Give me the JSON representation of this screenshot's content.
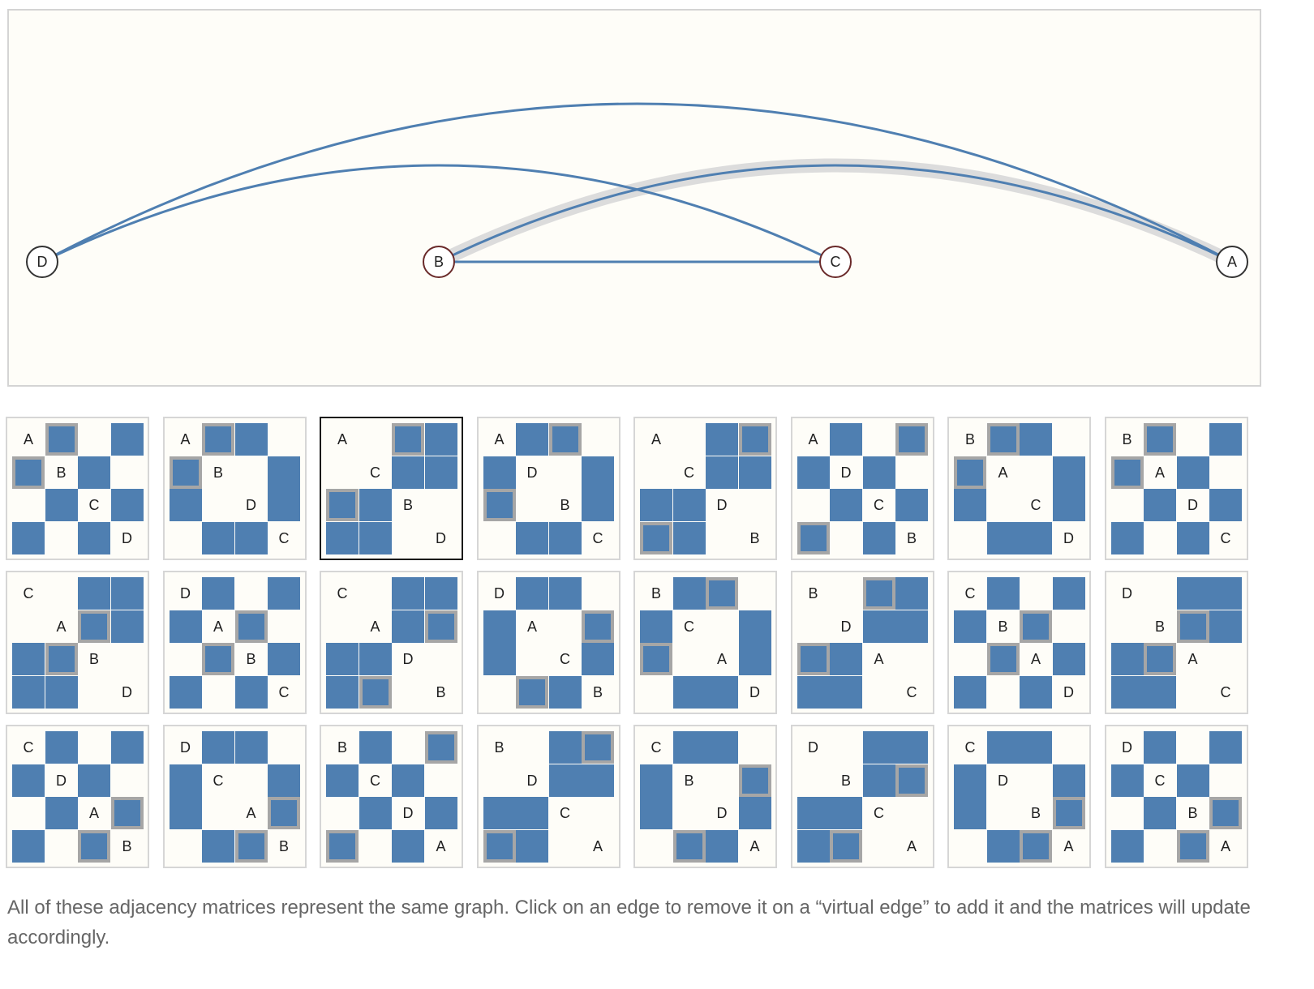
{
  "graph": {
    "nodes": [
      {
        "id": "D",
        "label": "D",
        "stroke": "#333333"
      },
      {
        "id": "B",
        "label": "B",
        "stroke": "#6a2a2a"
      },
      {
        "id": "C",
        "label": "C",
        "stroke": "#6a2a2a"
      },
      {
        "id": "A",
        "label": "A",
        "stroke": "#333333"
      }
    ],
    "edges": [
      {
        "from": "D",
        "to": "A"
      },
      {
        "from": "D",
        "to": "C"
      },
      {
        "from": "B",
        "to": "C"
      },
      {
        "from": "B",
        "to": "A"
      }
    ],
    "virtual_edges": [
      {
        "from": "B",
        "to": "A"
      }
    ]
  },
  "matrices": [
    {
      "order": [
        "A",
        "B",
        "C",
        "D"
      ],
      "highlight": [
        "A",
        "B"
      ]
    },
    {
      "order": [
        "A",
        "B",
        "D",
        "C"
      ],
      "highlight": [
        "A",
        "B"
      ]
    },
    {
      "order": [
        "A",
        "C",
        "B",
        "D"
      ],
      "highlight": [
        "A",
        "B"
      ],
      "selected": true
    },
    {
      "order": [
        "A",
        "D",
        "B",
        "C"
      ],
      "highlight": [
        "A",
        "B"
      ]
    },
    {
      "order": [
        "A",
        "C",
        "D",
        "B"
      ],
      "highlight": [
        "A",
        "B"
      ]
    },
    {
      "order": [
        "A",
        "D",
        "C",
        "B"
      ],
      "highlight": [
        "A",
        "B"
      ]
    },
    {
      "order": [
        "B",
        "A",
        "C",
        "D"
      ],
      "highlight": [
        "A",
        "B"
      ]
    },
    {
      "order": [
        "B",
        "A",
        "D",
        "C"
      ],
      "highlight": [
        "A",
        "B"
      ]
    },
    {
      "order": [
        "C",
        "A",
        "B",
        "D"
      ],
      "highlight": [
        "A",
        "B"
      ]
    },
    {
      "order": [
        "D",
        "A",
        "B",
        "C"
      ],
      "highlight": [
        "A",
        "B"
      ]
    },
    {
      "order": [
        "C",
        "A",
        "D",
        "B"
      ],
      "highlight": [
        "A",
        "B"
      ]
    },
    {
      "order": [
        "D",
        "A",
        "C",
        "B"
      ],
      "highlight": [
        "A",
        "B"
      ]
    },
    {
      "order": [
        "B",
        "C",
        "A",
        "D"
      ],
      "highlight": [
        "A",
        "B"
      ]
    },
    {
      "order": [
        "B",
        "D",
        "A",
        "C"
      ],
      "highlight": [
        "A",
        "B"
      ]
    },
    {
      "order": [
        "C",
        "B",
        "A",
        "D"
      ],
      "highlight": [
        "A",
        "B"
      ]
    },
    {
      "order": [
        "D",
        "B",
        "A",
        "C"
      ],
      "highlight": [
        "A",
        "B"
      ]
    },
    {
      "order": [
        "C",
        "D",
        "A",
        "B"
      ],
      "highlight": [
        "A",
        "B"
      ]
    },
    {
      "order": [
        "D",
        "C",
        "A",
        "B"
      ],
      "highlight": [
        "A",
        "B"
      ]
    },
    {
      "order": [
        "B",
        "C",
        "D",
        "A"
      ],
      "highlight": [
        "A",
        "B"
      ]
    },
    {
      "order": [
        "B",
        "D",
        "C",
        "A"
      ],
      "highlight": [
        "A",
        "B"
      ]
    },
    {
      "order": [
        "C",
        "B",
        "D",
        "A"
      ],
      "highlight": [
        "A",
        "B"
      ]
    },
    {
      "order": [
        "D",
        "B",
        "C",
        "A"
      ],
      "highlight": [
        "A",
        "B"
      ]
    },
    {
      "order": [
        "C",
        "D",
        "B",
        "A"
      ],
      "highlight": [
        "A",
        "B"
      ]
    },
    {
      "order": [
        "D",
        "C",
        "B",
        "A"
      ],
      "highlight": [
        "A",
        "B"
      ]
    }
  ],
  "colors": {
    "edge": "#4f7fb1",
    "cell_on": "#4f7fb1",
    "highlight_border": "#a6a6a6",
    "virtual_edge": "#dcdcdc",
    "panel_background": "#fefdf8"
  },
  "caption": "All of these adjacency matrices represent the same graph. Click on an edge to remove it on a “virtual edge” to add it and the matrices will update accordingly."
}
